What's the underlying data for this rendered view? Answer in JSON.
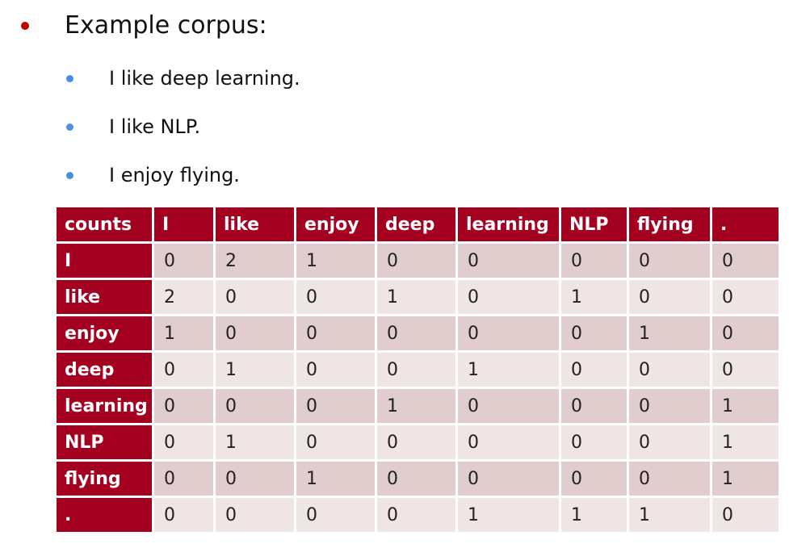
{
  "heading": "Example corpus:",
  "sentences": [
    "I like deep learning.",
    "I like NLP.",
    "I enjoy flying."
  ],
  "colors": {
    "header_bg": "#a40020",
    "row_odd": "#e1cdcd",
    "row_even": "#efe5e4",
    "red_bullet": "#c00000",
    "blue_bullet": "#4a90e2"
  },
  "table": {
    "corner": "counts",
    "columns": [
      "I",
      "like",
      "enjoy",
      "deep",
      "learning",
      "NLP",
      "flying",
      "."
    ],
    "rows": [
      {
        "label": "I",
        "values": [
          "0",
          "2",
          "1",
          "0",
          "0",
          "0",
          "0",
          "0"
        ]
      },
      {
        "label": "like",
        "values": [
          "2",
          "0",
          "0",
          "1",
          "0",
          "1",
          "0",
          "0"
        ]
      },
      {
        "label": "enjoy",
        "values": [
          "1",
          "0",
          "0",
          "0",
          "0",
          "0",
          "1",
          "0"
        ]
      },
      {
        "label": "deep",
        "values": [
          "0",
          "1",
          "0",
          "0",
          "1",
          "0",
          "0",
          "0"
        ]
      },
      {
        "label": "learning",
        "values": [
          "0",
          "0",
          "0",
          "1",
          "0",
          "0",
          "0",
          "1"
        ]
      },
      {
        "label": "NLP",
        "values": [
          "0",
          "1",
          "0",
          "0",
          "0",
          "0",
          "0",
          "1"
        ]
      },
      {
        "label": "flying",
        "values": [
          "0",
          "0",
          "1",
          "0",
          "0",
          "0",
          "0",
          "1"
        ]
      },
      {
        "label": ".",
        "values": [
          "0",
          "0",
          "0",
          "0",
          "1",
          "1",
          "1",
          "0"
        ]
      }
    ]
  }
}
